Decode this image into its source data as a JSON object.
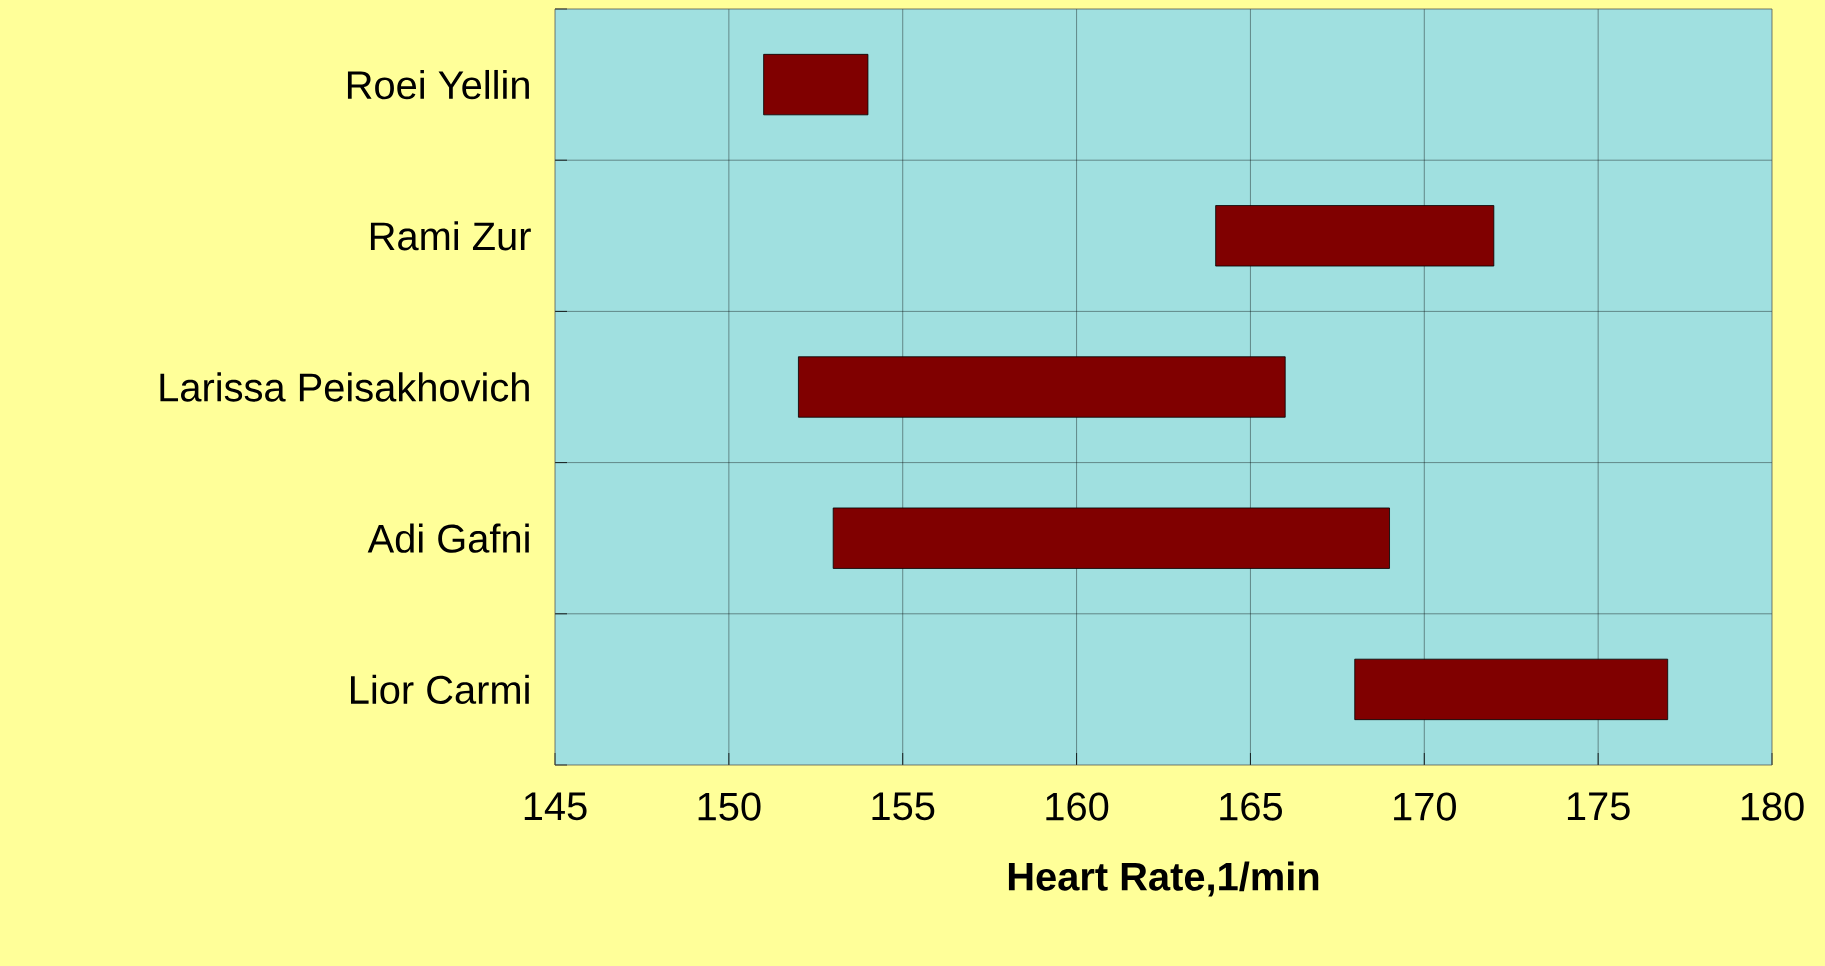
{
  "chart_data": {
    "type": "bar",
    "orientation": "horizontal",
    "xlabel": "Heart Rate,1/min",
    "categories": [
      "Roei Yellin",
      "Rami Zur",
      "Larissa Peisakhovich",
      "Adi Gafni",
      "Lior Carmi"
    ],
    "base": [
      151,
      164,
      152,
      153,
      168
    ],
    "values": [
      3,
      8,
      14,
      16,
      9
    ],
    "color": "#800000",
    "xlim": [
      145,
      180
    ],
    "xticks": [
      145,
      150,
      155,
      160,
      165,
      170,
      175,
      180
    ],
    "grid": true
  }
}
